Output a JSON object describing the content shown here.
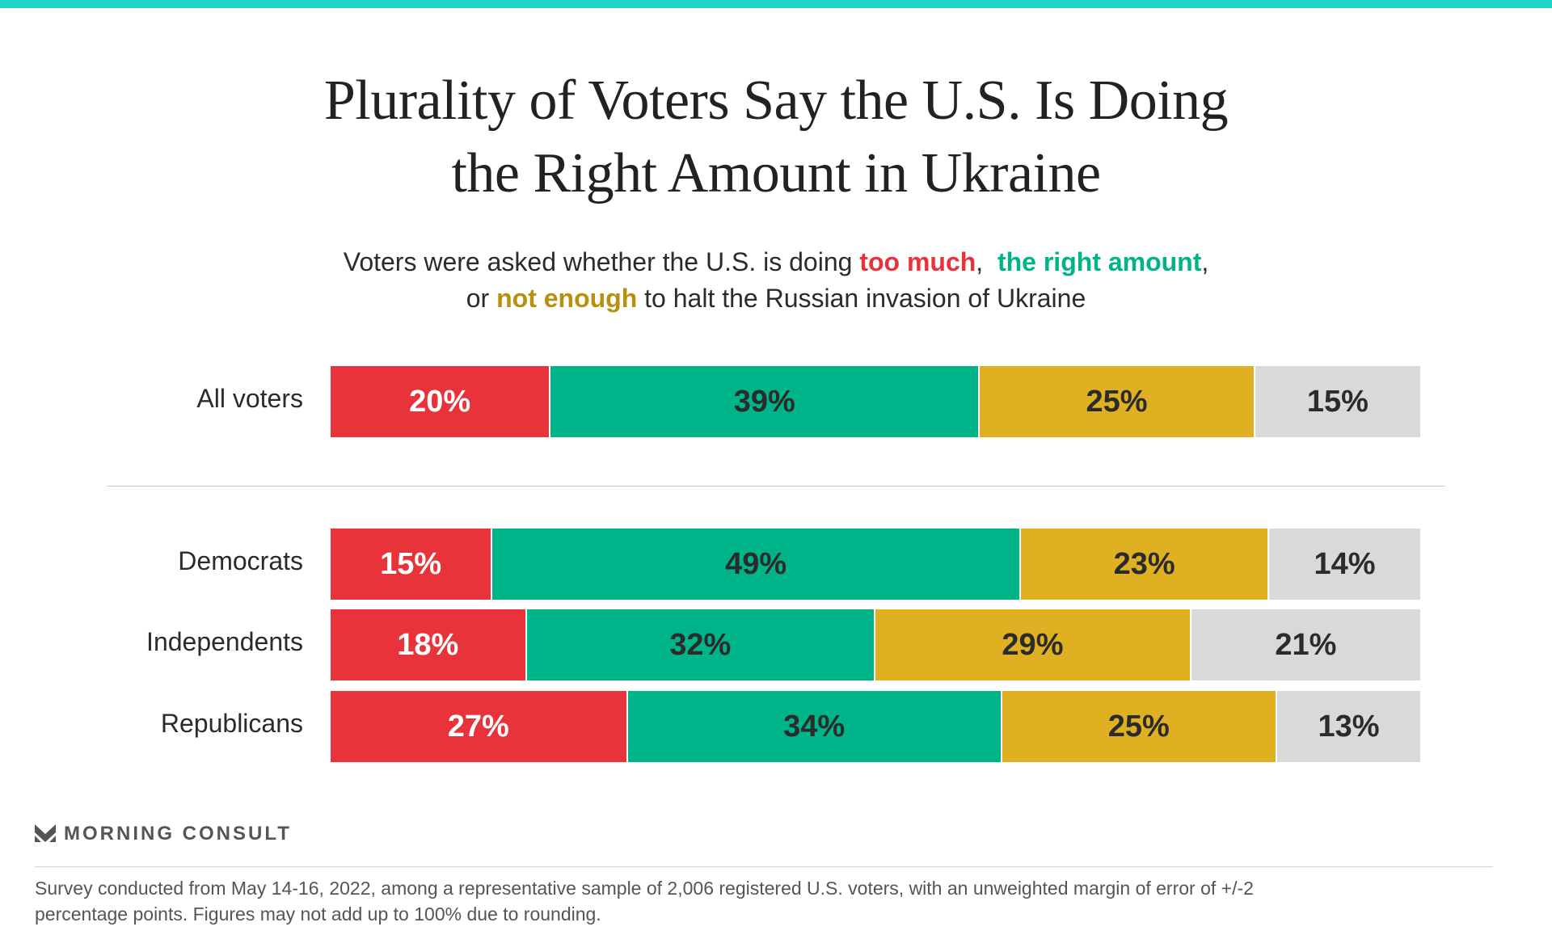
{
  "colors": {
    "top_bar": "#1ed3c8",
    "too_much": "#e8333a",
    "right_amount": "#00b48a",
    "not_enough": "#e0b023",
    "other": "#d9d9d9"
  },
  "title_line1": "Plurality of Voters Say the U.S. Is Doing",
  "title_line2": "the Right Amount in Ukraine",
  "subtitle": {
    "part1": "Voters were asked whether the U.S. is doing ",
    "too_much": "too much",
    "part2": ",  ",
    "right_amount": "the right amount",
    "part3": ",",
    "part4": "or ",
    "not_enough": "not enough",
    "part5": " to halt the Russian invasion of Ukraine"
  },
  "chart_data": {
    "type": "bar",
    "orientation": "horizontal-stacked-100",
    "categories": [
      "All voters",
      "Democrats",
      "Independents",
      "Republicans"
    ],
    "series": [
      {
        "key": "too_much",
        "values": [
          20,
          15,
          18,
          27
        ]
      },
      {
        "key": "right_amount",
        "values": [
          39,
          49,
          32,
          34
        ]
      },
      {
        "key": "not_enough",
        "values": [
          25,
          23,
          29,
          25
        ]
      },
      {
        "key": "other",
        "values": [
          15,
          14,
          21,
          13
        ]
      }
    ],
    "labels": [
      [
        "20%",
        "39%",
        "25%",
        "15%"
      ],
      [
        "15%",
        "49%",
        "23%",
        "14%"
      ],
      [
        "18%",
        "32%",
        "29%",
        "21%"
      ],
      [
        "27%",
        "34%",
        "25%",
        "13%"
      ]
    ]
  },
  "brand": "MORNING CONSULT",
  "footer_line1": "Survey conducted from May 14-16, 2022, among a representative sample of 2,006 registered U.S. voters, with an unweighted margin of error of +/-2",
  "footer_line2": "percentage points. Figures may not add up to 100% due to rounding."
}
